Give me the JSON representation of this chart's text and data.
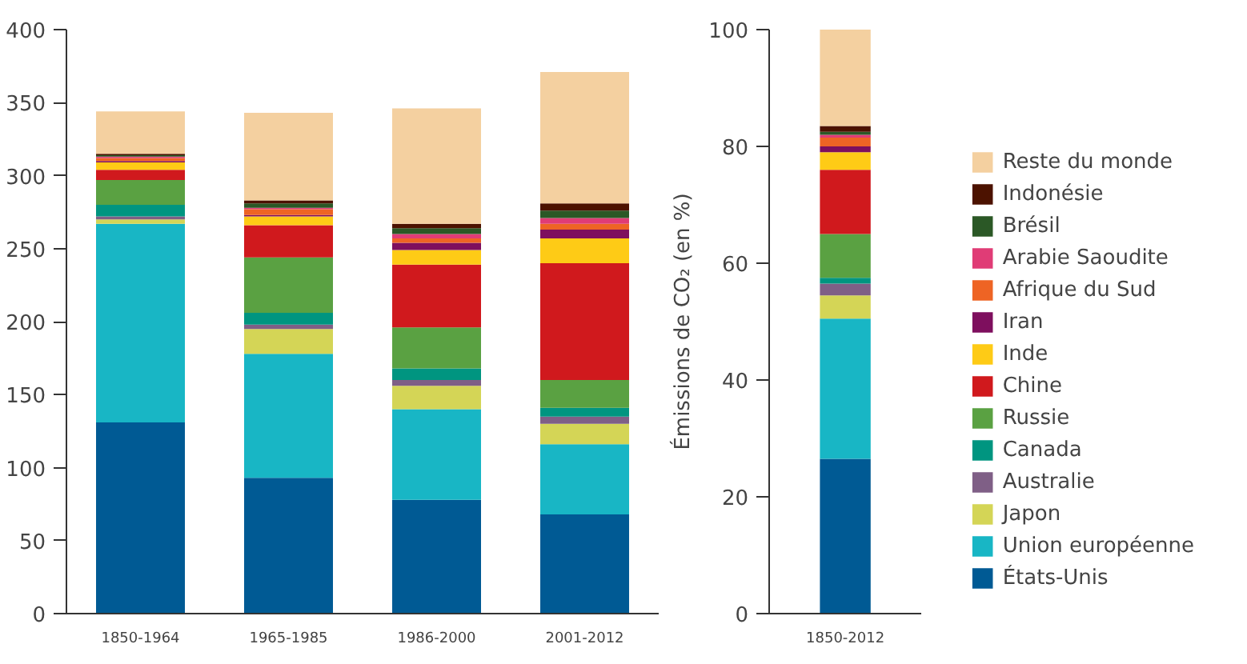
{
  "chart_data": [
    {
      "type": "bar",
      "stacked": true,
      "categories": [
        "1850-1964",
        "1965-1985",
        "1986-2000",
        "2001-2012"
      ],
      "ylim": [
        0,
        400
      ],
      "yticks": [
        0,
        50,
        100,
        150,
        200,
        250,
        300,
        350,
        400
      ],
      "grid": false,
      "series": [
        {
          "color": "#005a94",
          "values": [
            131,
            93,
            78,
            68
          ]
        },
        {
          "color": "#18b6c5",
          "values": [
            136,
            85,
            62,
            48
          ]
        },
        {
          "color": "#d4d556",
          "values": [
            3,
            17,
            16,
            14
          ]
        },
        {
          "color": "#7f5f86",
          "values": [
            2,
            3,
            4,
            5
          ]
        },
        {
          "color": "#009580",
          "values": [
            8,
            8,
            8,
            6
          ]
        },
        {
          "color": "#5aa142",
          "values": [
            17,
            38,
            28,
            19
          ]
        },
        {
          "color": "#d0191d",
          "values": [
            7,
            22,
            43,
            80
          ]
        },
        {
          "color": "#fecb16",
          "values": [
            5,
            6,
            10,
            17
          ]
        },
        {
          "color": "#7e0f5e",
          "values": [
            1,
            1,
            5,
            6
          ]
        },
        {
          "color": "#ee6424",
          "values": [
            2,
            4,
            3,
            4
          ]
        },
        {
          "color": "#e03c76",
          "values": [
            1,
            1,
            3,
            4
          ]
        },
        {
          "color": "#2b5826",
          "values": [
            1,
            3,
            4,
            5
          ]
        },
        {
          "color": "#4c1200",
          "values": [
            1,
            2,
            3,
            5
          ]
        },
        {
          "color": "#f4d0a0",
          "values": [
            29,
            60,
            79,
            90
          ]
        }
      ]
    },
    {
      "type": "bar",
      "stacked": true,
      "categories": [
        "1850-2012"
      ],
      "ylabel": "Émissions de CO₂ (en %)",
      "ylim": [
        0,
        100
      ],
      "yticks": [
        0,
        20,
        40,
        60,
        80,
        100
      ],
      "grid": false,
      "legend": "right",
      "series": [
        {
          "name": "États-Unis",
          "color": "#005a94",
          "values": [
            26.5
          ]
        },
        {
          "name": "Union européenne",
          "color": "#18b6c5",
          "values": [
            24
          ]
        },
        {
          "name": "Japon",
          "color": "#d4d556",
          "values": [
            4
          ]
        },
        {
          "name": "Australie",
          "color": "#7f5f86",
          "values": [
            2
          ]
        },
        {
          "name": "Canada",
          "color": "#009580",
          "values": [
            1
          ]
        },
        {
          "name": "Russie",
          "color": "#5aa142",
          "values": [
            7.5
          ]
        },
        {
          "name": "Chine",
          "color": "#d0191d",
          "values": [
            11
          ]
        },
        {
          "name": "Inde",
          "color": "#fecb16",
          "values": [
            3
          ]
        },
        {
          "name": "Iran",
          "color": "#7e0f5e",
          "values": [
            1
          ]
        },
        {
          "name": "Afrique du Sud",
          "color": "#ee6424",
          "values": [
            1.5
          ]
        },
        {
          "name": "Arabie Saoudite",
          "color": "#e03c76",
          "values": [
            0.5
          ]
        },
        {
          "name": "Brésil",
          "color": "#2b5826",
          "values": [
            0.5
          ]
        },
        {
          "name": "Indonésie",
          "color": "#4c1200",
          "values": [
            1
          ]
        },
        {
          "name": "Reste du monde",
          "color": "#f4d0a0",
          "values": [
            16.5
          ]
        }
      ]
    }
  ]
}
